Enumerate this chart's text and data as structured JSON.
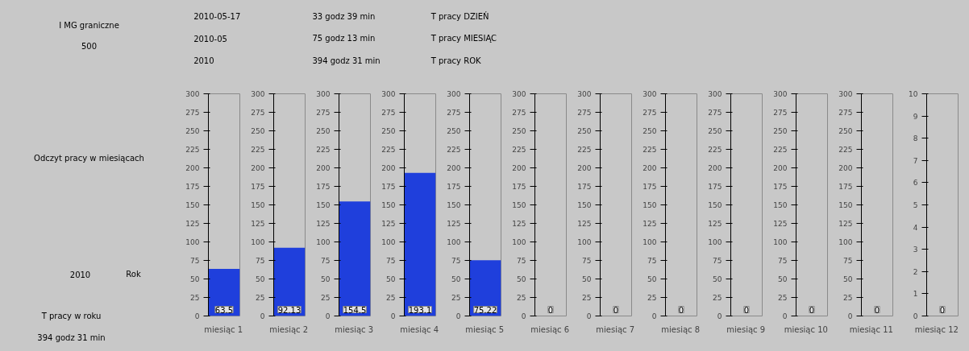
{
  "chart_data": [
    {
      "type": "other",
      "annotations": [
        "I MG graniczne",
        "500",
        "Odczyt pracy w miesiącach",
        "2010",
        "Rok",
        "T pracy w roku",
        "394 godz 31 min"
      ]
    },
    {
      "type": "other",
      "annotations": [
        "2010-05-17",
        "2010-05",
        "2010",
        "33 godz 39 min",
        "T pracy DZIEŃ",
        "75 godz 13 min",
        "T pracy MIESIĄC",
        "394 godz 31 min",
        "T pracy ROK"
      ]
    },
    {
      "type": "bar",
      "categories": [
        "miesiąc 1"
      ],
      "values": [
        63.5
      ],
      "data_labels": true,
      "color": "#1f3fdc",
      "ylim": [
        0,
        300
      ],
      "yticks": [
        0,
        25,
        50,
        75,
        100,
        125,
        150,
        175,
        200,
        225,
        250,
        275,
        300
      ]
    },
    {
      "type": "bar",
      "categories": [
        "miesiąc 2"
      ],
      "values": [
        92.13
      ],
      "data_labels": true,
      "color": "#1f3fdc",
      "ylim": [
        0,
        300
      ],
      "yticks": [
        0,
        25,
        50,
        75,
        100,
        125,
        150,
        175,
        200,
        225,
        250,
        275,
        300
      ]
    },
    {
      "type": "bar",
      "categories": [
        "miesiąc 3"
      ],
      "values": [
        154.5
      ],
      "data_labels": true,
      "color": "#1f3fdc",
      "ylim": [
        0,
        300
      ],
      "yticks": [
        0,
        25,
        50,
        75,
        100,
        125,
        150,
        175,
        200,
        225,
        250,
        275,
        300
      ]
    },
    {
      "type": "bar",
      "categories": [
        "miesiąc 4"
      ],
      "values": [
        193.1
      ],
      "data_labels": true,
      "color": "#1f3fdc",
      "ylim": [
        0,
        300
      ],
      "yticks": [
        0,
        25,
        50,
        75,
        100,
        125,
        150,
        175,
        200,
        225,
        250,
        275,
        300
      ]
    },
    {
      "type": "bar",
      "categories": [
        "miesiąc 5"
      ],
      "values": [
        75.22
      ],
      "data_labels": true,
      "color": "#1f3fdc",
      "ylim": [
        0,
        300
      ],
      "yticks": [
        0,
        25,
        50,
        75,
        100,
        125,
        150,
        175,
        200,
        225,
        250,
        275,
        300
      ]
    },
    {
      "type": "bar",
      "categories": [
        "miesiąc 6"
      ],
      "values": [
        0
      ],
      "data_labels": true,
      "color": "#1f3fdc",
      "ylim": [
        0,
        300
      ],
      "yticks": [
        0,
        25,
        50,
        75,
        100,
        125,
        150,
        175,
        200,
        225,
        250,
        275,
        300
      ]
    },
    {
      "type": "bar",
      "categories": [
        "miesiąc 7"
      ],
      "values": [
        0
      ],
      "data_labels": true,
      "color": "#1f3fdc",
      "ylim": [
        0,
        300
      ],
      "yticks": [
        0,
        25,
        50,
        75,
        100,
        125,
        150,
        175,
        200,
        225,
        250,
        275,
        300
      ]
    },
    {
      "type": "bar",
      "categories": [
        "miesiąc 8"
      ],
      "values": [
        0
      ],
      "data_labels": true,
      "color": "#1f3fdc",
      "ylim": [
        0,
        300
      ],
      "yticks": [
        0,
        25,
        50,
        75,
        100,
        125,
        150,
        175,
        200,
        225,
        250,
        275,
        300
      ]
    },
    {
      "type": "bar",
      "categories": [
        "miesiąc 9"
      ],
      "values": [
        0
      ],
      "data_labels": true,
      "color": "#1f3fdc",
      "ylim": [
        0,
        300
      ],
      "yticks": [
        0,
        25,
        50,
        75,
        100,
        125,
        150,
        175,
        200,
        225,
        250,
        275,
        300
      ]
    },
    {
      "type": "bar",
      "categories": [
        "miesiąc 10"
      ],
      "values": [
        0
      ],
      "data_labels": true,
      "color": "#1f3fdc",
      "ylim": [
        0,
        300
      ],
      "yticks": [
        0,
        25,
        50,
        75,
        100,
        125,
        150,
        175,
        200,
        225,
        250,
        275,
        300
      ]
    },
    {
      "type": "bar",
      "categories": [
        "miesiąc 11"
      ],
      "values": [
        0
      ],
      "data_labels": true,
      "color": "#1f3fdc",
      "ylim": [
        0,
        300
      ],
      "yticks": [
        0,
        25,
        50,
        75,
        100,
        125,
        150,
        175,
        200,
        225,
        250,
        275,
        300
      ]
    },
    {
      "type": "bar",
      "categories": [
        "miesiąc 12"
      ],
      "values": [
        0
      ],
      "data_labels": true,
      "color": "#1f3fdc",
      "ylim": [
        0,
        10
      ],
      "yticks": [
        0,
        1,
        2,
        3,
        4,
        5,
        6,
        7,
        8,
        9,
        10
      ]
    }
  ]
}
